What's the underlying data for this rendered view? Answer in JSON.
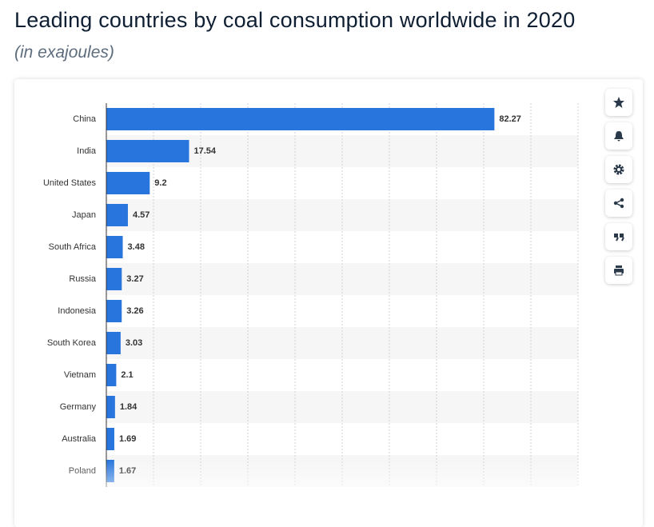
{
  "chart_data": {
    "type": "bar",
    "orientation": "horizontal",
    "title": "Leading countries by coal consumption worldwide in 2020",
    "subtitle": "(in exajoules)",
    "categories": [
      "China",
      "India",
      "United States",
      "Japan",
      "South Africa",
      "Russia",
      "Indonesia",
      "South Korea",
      "Vietnam",
      "Germany",
      "Australia",
      "Poland"
    ],
    "values": [
      82.27,
      17.54,
      9.2,
      4.57,
      3.48,
      3.27,
      3.26,
      3.03,
      2.1,
      1.84,
      1.69,
      1.67
    ],
    "color": "#2876dd",
    "xlim": [
      0,
      100
    ],
    "xticks": [
      0,
      10,
      20,
      30,
      40,
      50,
      60,
      70,
      80,
      90,
      100
    ],
    "grid": true
  }
}
